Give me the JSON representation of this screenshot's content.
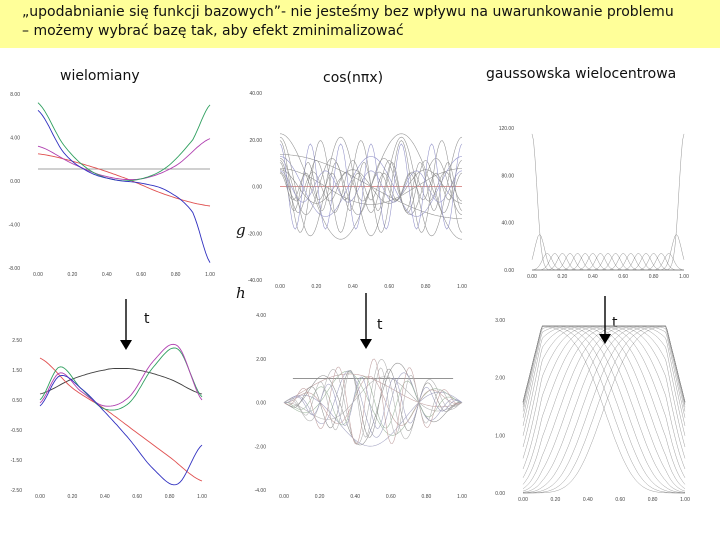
{
  "banner": {
    "line1": "„upodabnianie się funkcji bazowych”- nie jesteśmy bez wpływu na uwarunkowanie problemu",
    "line2": "– możemy wybrać bazę tak, aby efekt zminimalizować"
  },
  "labels": {
    "polynomials": "wielomiany",
    "cosine": "cos(nπx)",
    "gaussian": "gaussowska wielocentrowa",
    "g": "g",
    "h": "h",
    "t1": "t",
    "t2": "t",
    "t3": "t"
  },
  "colors": {
    "banner_bg": "#ffff99",
    "arrow": "#000000"
  },
  "chart_data": [
    {
      "id": "poly-top",
      "type": "line",
      "xlim": [
        0,
        1
      ],
      "ylim": [
        -8,
        8
      ],
      "xticks": [
        "0.00",
        "0.20",
        "0.40",
        "0.60",
        "0.80",
        "1.00"
      ],
      "yticks": [
        "8.00",
        "4.00",
        "0.00",
        "-4.00",
        "-8.00"
      ],
      "series": [
        {
          "color": "#a0a0a0",
          "x": [
            0,
            1
          ],
          "y": [
            1.1,
            1.1
          ]
        },
        {
          "color": "#e05050",
          "x": [
            0,
            0.25,
            0.5,
            0.75,
            1
          ],
          "y": [
            2.5,
            1.6,
            0.3,
            -1.3,
            -2.3
          ]
        },
        {
          "color": "#b040b0",
          "x": [
            0,
            0.2,
            0.4,
            0.6,
            0.8,
            1
          ],
          "y": [
            3.2,
            1.6,
            0.4,
            0.2,
            1.4,
            3.9
          ]
        },
        {
          "color": "#30a060",
          "x": [
            0,
            0.15,
            0.3,
            0.45,
            0.6,
            0.75,
            0.9,
            1
          ],
          "y": [
            7.2,
            3.3,
            1.0,
            0.1,
            0.2,
            1.3,
            3.8,
            7.0
          ]
        },
        {
          "color": "#3030c0",
          "x": [
            0,
            0.15,
            0.3,
            0.45,
            0.6,
            0.75,
            0.9,
            1
          ],
          "y": [
            6.5,
            2.6,
            0.8,
            0.1,
            -0.2,
            -0.9,
            -2.9,
            -7.5
          ]
        }
      ]
    },
    {
      "id": "cos-top",
      "type": "line",
      "xlim": [
        0,
        1
      ],
      "ylim": [
        -40,
        40
      ],
      "xticks": [
        "0.00",
        "0.20",
        "0.40",
        "0.60",
        "0.80",
        "1.00"
      ],
      "yticks": [
        "40.00",
        "20.00",
        "0.00",
        "-20.00",
        "-40.00"
      ],
      "series_family": "cos(n*pi*x), scaled amplitudes, ~15 curves"
    },
    {
      "id": "gauss-top",
      "type": "line",
      "xlim": [
        0,
        1
      ],
      "ylim": [
        0,
        120
      ],
      "xticks": [
        "0.00",
        "0.20",
        "0.40",
        "0.60",
        "0.80",
        "1.00"
      ],
      "yticks": [
        "120.00",
        "80.00",
        "40.00",
        "0.00"
      ],
      "series_family": "multi-center gaussians"
    },
    {
      "id": "poly-bottom",
      "type": "line",
      "xlim": [
        0,
        1
      ],
      "ylim": [
        -2.5,
        2.5
      ],
      "xticks": [
        "0.00",
        "0.20",
        "0.40",
        "0.60",
        "0.80",
        "1.00"
      ],
      "yticks": [
        "2.50",
        "1.50",
        "0.50",
        "-0.50",
        "-1.50",
        "-2.50"
      ],
      "series": [
        {
          "color": "#404040",
          "x": [
            0,
            0.2,
            0.4,
            0.5,
            0.6,
            0.8,
            1
          ],
          "y": [
            0.7,
            1.2,
            1.5,
            1.55,
            1.5,
            1.2,
            0.7
          ]
        },
        {
          "color": "#e05050",
          "x": [
            0,
            0.2,
            0.4,
            0.6,
            0.8,
            1
          ],
          "y": [
            1.9,
            0.9,
            0.2,
            -0.6,
            -1.4,
            -2.2
          ]
        },
        {
          "color": "#30a060",
          "x": [
            0,
            0.12,
            0.25,
            0.4,
            0.55,
            0.7,
            0.85,
            1
          ],
          "y": [
            0.5,
            1.6,
            0.9,
            0.2,
            0.4,
            1.6,
            2.2,
            0.6
          ]
        },
        {
          "color": "#b040b0",
          "x": [
            0,
            0.12,
            0.25,
            0.4,
            0.55,
            0.7,
            0.85,
            1
          ],
          "y": [
            0.4,
            1.4,
            0.8,
            0.3,
            0.6,
            1.8,
            2.3,
            0.5
          ]
        },
        {
          "color": "#3030c0",
          "x": [
            0,
            0.12,
            0.25,
            0.4,
            0.55,
            0.7,
            0.85,
            1
          ],
          "y": [
            0.3,
            1.3,
            0.9,
            0.1,
            -0.8,
            -1.8,
            -2.3,
            -1.0
          ]
        }
      ]
    },
    {
      "id": "cos-bottom",
      "type": "line",
      "xlim": [
        0,
        1
      ],
      "ylim": [
        -4,
        4
      ],
      "xticks": [
        "0.00",
        "0.20",
        "0.40",
        "0.60",
        "0.80",
        "1.00"
      ],
      "yticks": [
        "4.00",
        "2.00",
        "0.00",
        "-2.00",
        "-4.00"
      ],
      "series_family": "orthogonalized cos basis"
    },
    {
      "id": "gauss-bottom",
      "type": "line",
      "xlim": [
        0,
        1
      ],
      "ylim": [
        0,
        3
      ],
      "xticks": [
        "0.00",
        "0.20",
        "0.40",
        "0.60",
        "0.80",
        "1.00"
      ],
      "yticks": [
        "3.00",
        "2.00",
        "1.00",
        "0.00"
      ],
      "series_family": "orthogonalized gaussians"
    }
  ]
}
